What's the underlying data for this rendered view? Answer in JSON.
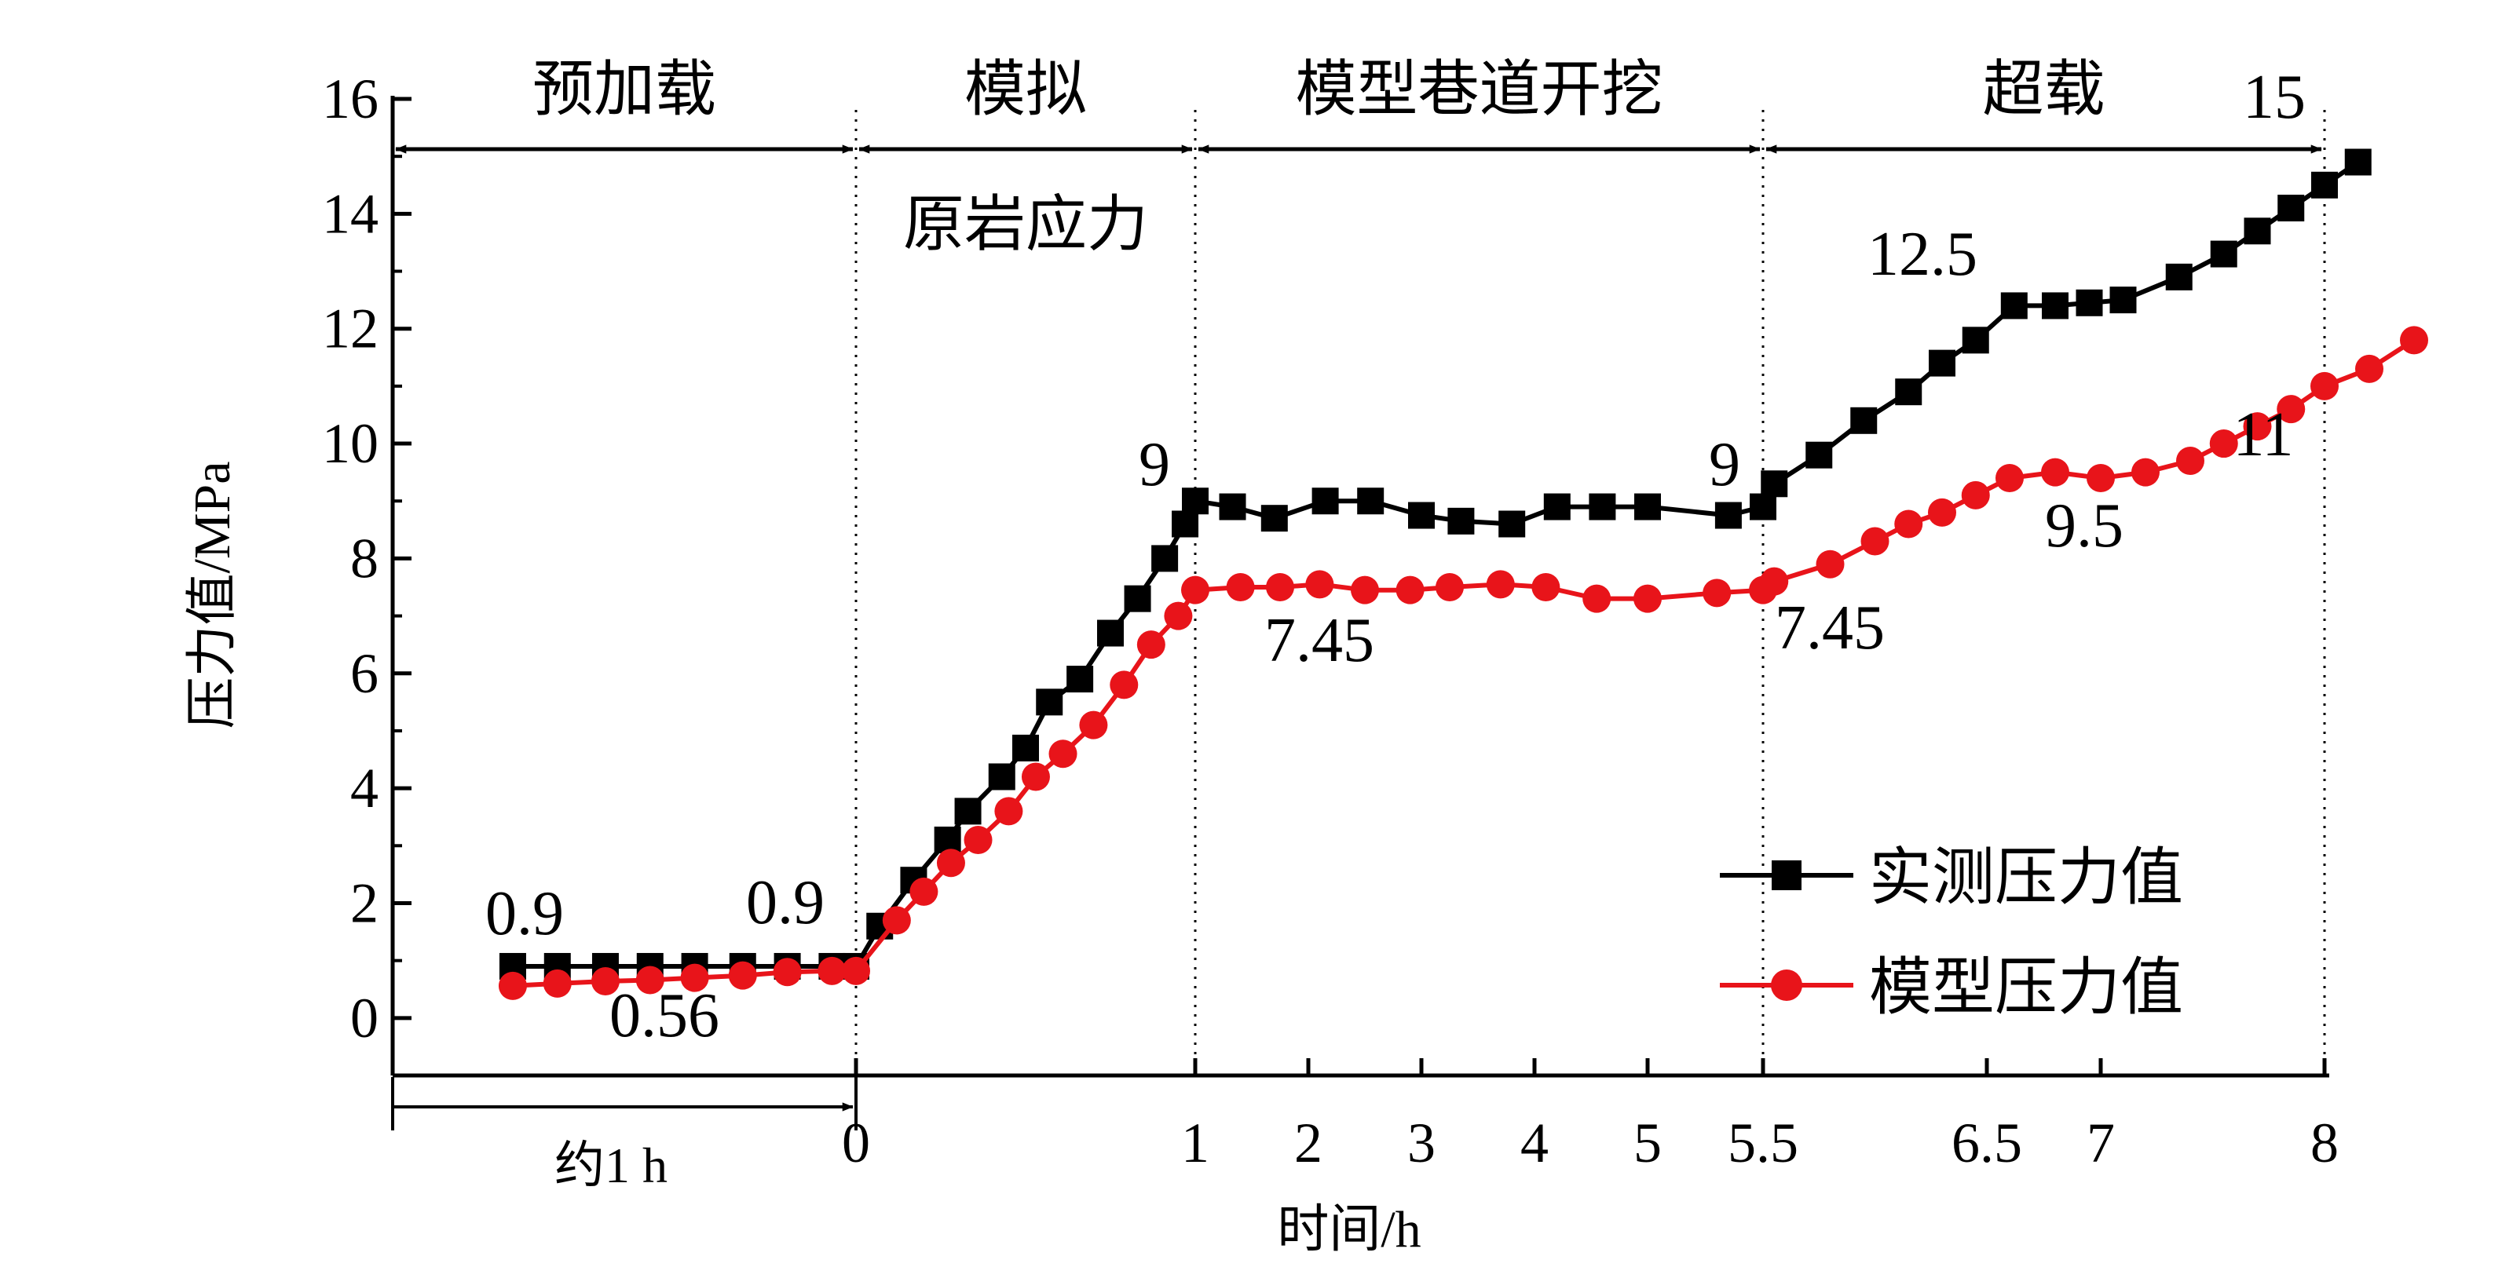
{
  "chart_data": {
    "type": "line",
    "ylabel": "压力值/MPa",
    "xlabel": "时间/h",
    "ylim": [
      -1,
      16
    ],
    "yticks": [
      "0",
      "2",
      "4",
      "6",
      "8",
      "10",
      "12",
      "14",
      "16"
    ],
    "xticks": [
      "0",
      "1",
      "2",
      "3",
      "4",
      "5",
      "5.5",
      "6.5",
      "7",
      "8"
    ],
    "pre_label": "约1 h",
    "grid": false,
    "legend_position": "bottom-right",
    "phases": [
      {
        "label": "预加载",
        "from": -1.35,
        "to": 0
      },
      {
        "label": "模拟原岩应力",
        "from": 0,
        "to": 1
      },
      {
        "label": "模型巷道开挖",
        "from": 1,
        "to": 5.5
      },
      {
        "label": "超载",
        "from": 5.5,
        "to": 8
      }
    ],
    "series": [
      {
        "name": "实测压力值",
        "color": "#000000",
        "marker": "square",
        "points": [
          [
            -1.0,
            0.9
          ],
          [
            -0.87,
            0.9
          ],
          [
            -0.73,
            0.9
          ],
          [
            -0.6,
            0.9
          ],
          [
            -0.47,
            0.9
          ],
          [
            -0.33,
            0.9
          ],
          [
            -0.2,
            0.9
          ],
          [
            -0.07,
            0.9
          ],
          [
            0,
            0.9
          ],
          [
            0.07,
            1.6
          ],
          [
            0.17,
            2.4
          ],
          [
            0.27,
            3.1
          ],
          [
            0.33,
            3.6
          ],
          [
            0.43,
            4.2
          ],
          [
            0.5,
            4.7
          ],
          [
            0.57,
            5.5
          ],
          [
            0.66,
            5.9
          ],
          [
            0.75,
            6.7
          ],
          [
            0.83,
            7.3
          ],
          [
            0.91,
            8.0
          ],
          [
            0.97,
            8.6
          ],
          [
            1.0,
            9.0
          ],
          [
            1.33,
            8.9
          ],
          [
            1.7,
            8.7
          ],
          [
            2.15,
            9.0
          ],
          [
            2.55,
            9.0
          ],
          [
            3.0,
            8.75
          ],
          [
            3.35,
            8.65
          ],
          [
            3.8,
            8.6
          ],
          [
            4.2,
            8.9
          ],
          [
            4.6,
            8.9
          ],
          [
            5.0,
            8.9
          ],
          [
            5.35,
            8.75
          ],
          [
            5.5,
            8.9
          ],
          [
            5.55,
            9.3
          ],
          [
            5.75,
            9.8
          ],
          [
            5.95,
            10.4
          ],
          [
            6.15,
            10.9
          ],
          [
            6.3,
            11.4
          ],
          [
            6.45,
            11.8
          ],
          [
            6.62,
            12.4
          ],
          [
            6.8,
            12.4
          ],
          [
            6.95,
            12.45
          ],
          [
            7.1,
            12.5
          ],
          [
            7.35,
            12.9
          ],
          [
            7.55,
            13.3
          ],
          [
            7.7,
            13.7
          ],
          [
            7.85,
            14.1
          ],
          [
            8.0,
            14.5
          ],
          [
            8.15,
            14.9
          ]
        ]
      },
      {
        "name": "模型压力值",
        "color": "#e8141a",
        "marker": "circle",
        "points": [
          [
            -1.0,
            0.56
          ],
          [
            -0.87,
            0.6
          ],
          [
            -0.73,
            0.64
          ],
          [
            -0.6,
            0.66
          ],
          [
            -0.47,
            0.7
          ],
          [
            -0.33,
            0.74
          ],
          [
            -0.2,
            0.8
          ],
          [
            -0.07,
            0.82
          ],
          [
            0,
            0.82
          ],
          [
            0.12,
            1.7
          ],
          [
            0.2,
            2.2
          ],
          [
            0.28,
            2.7
          ],
          [
            0.36,
            3.1
          ],
          [
            0.45,
            3.6
          ],
          [
            0.53,
            4.2
          ],
          [
            0.61,
            4.6
          ],
          [
            0.7,
            5.1
          ],
          [
            0.79,
            5.8
          ],
          [
            0.87,
            6.5
          ],
          [
            0.95,
            7.0
          ],
          [
            1.0,
            7.45
          ],
          [
            1.4,
            7.5
          ],
          [
            1.75,
            7.5
          ],
          [
            2.1,
            7.55
          ],
          [
            2.5,
            7.45
          ],
          [
            2.9,
            7.45
          ],
          [
            3.25,
            7.5
          ],
          [
            3.7,
            7.55
          ],
          [
            4.1,
            7.5
          ],
          [
            4.55,
            7.3
          ],
          [
            5.0,
            7.3
          ],
          [
            5.3,
            7.4
          ],
          [
            5.5,
            7.45
          ],
          [
            5.55,
            7.6
          ],
          [
            5.8,
            7.9
          ],
          [
            6.0,
            8.3
          ],
          [
            6.15,
            8.6
          ],
          [
            6.3,
            8.8
          ],
          [
            6.45,
            9.1
          ],
          [
            6.6,
            9.4
          ],
          [
            6.8,
            9.5
          ],
          [
            7.0,
            9.4
          ],
          [
            7.2,
            9.5
          ],
          [
            7.4,
            9.7
          ],
          [
            7.55,
            10.0
          ],
          [
            7.7,
            10.3
          ],
          [
            7.85,
            10.6
          ],
          [
            8.0,
            11.0
          ],
          [
            8.2,
            11.3
          ],
          [
            8.4,
            11.8
          ]
        ]
      }
    ],
    "annotations": [
      "0.9",
      "0.56",
      "0.9",
      "9",
      "7.45",
      "9",
      "7.45",
      "12.5",
      "9.5",
      "11",
      "15"
    ]
  }
}
